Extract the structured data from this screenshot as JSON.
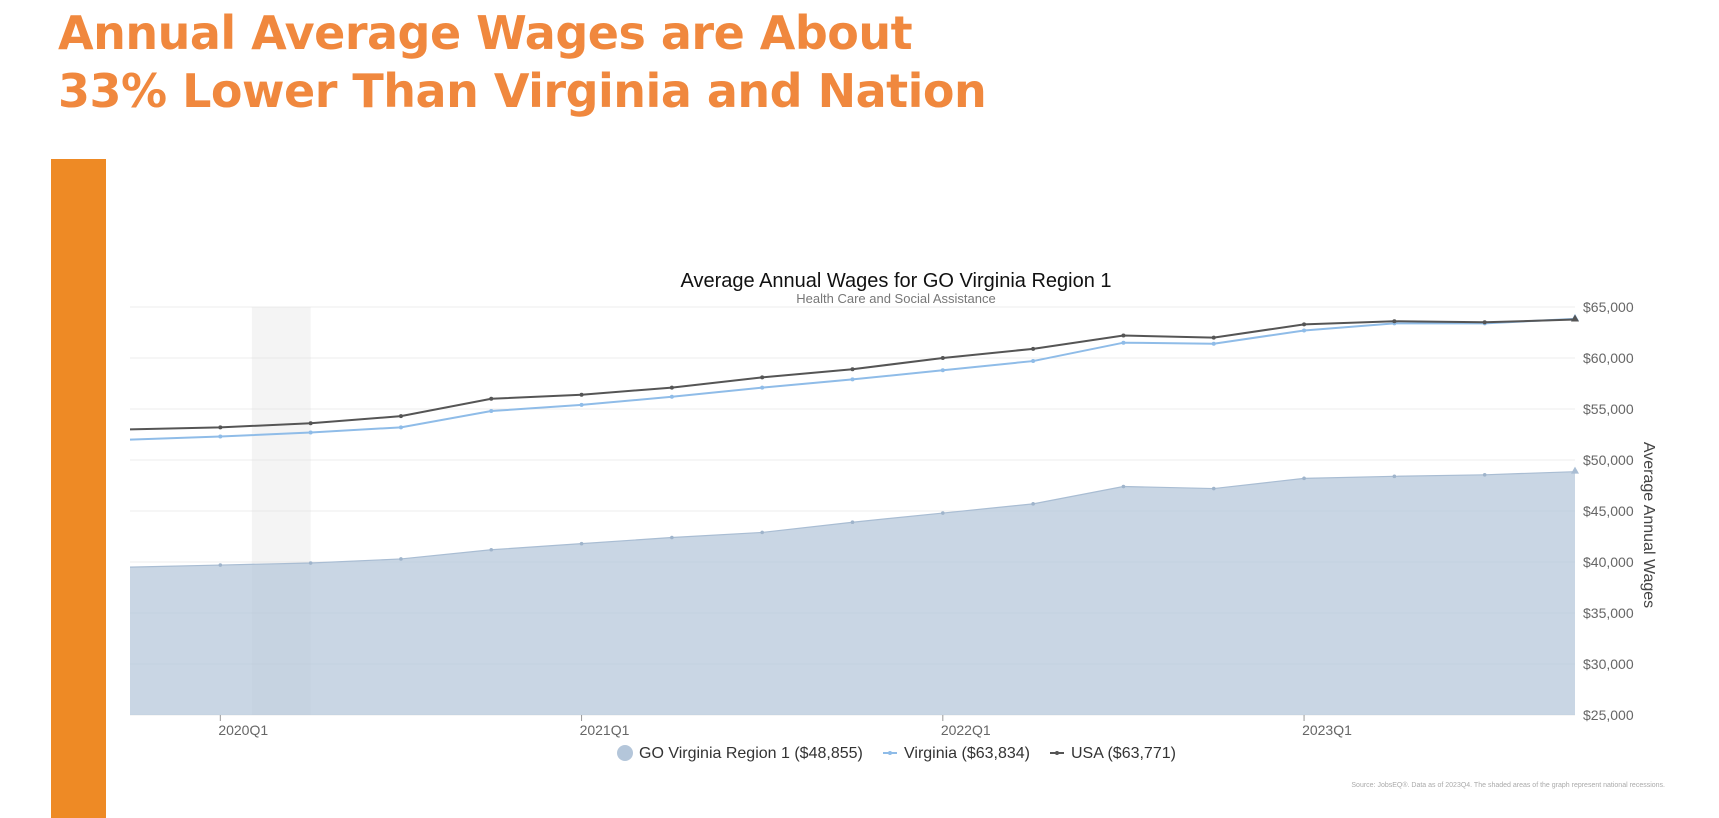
{
  "slide": {
    "headline_line1": "Annual Average Wages are About",
    "headline_line2": "33% Lower Than Virginia and Nation",
    "accent_color": "#ee8a25",
    "headline_color": "#f0883e"
  },
  "chart_data": {
    "type": "line",
    "title": "Average Annual Wages for GO Virginia Region 1",
    "subtitle": "Health Care and Social Assistance",
    "ylabel": "Average Annual Wages",
    "xlabel": "",
    "ylim": [
      25000,
      65000
    ],
    "yticks": [
      "$65,000",
      "$60,000",
      "$55,000",
      "$50,000",
      "$45,000",
      "$40,000",
      "$35,000",
      "$30,000",
      "$25,000"
    ],
    "ytick_values": [
      65000,
      60000,
      55000,
      50000,
      45000,
      40000,
      35000,
      30000,
      25000
    ],
    "xtick_labels": [
      "2020Q1",
      "2021Q1",
      "2022Q1",
      "2023Q1"
    ],
    "xtick_index": [
      1,
      5,
      9,
      13
    ],
    "x": [
      "2019Q4",
      "2020Q1",
      "2020Q2",
      "2020Q3",
      "2020Q4",
      "2021Q1",
      "2021Q2",
      "2021Q3",
      "2021Q4",
      "2022Q1",
      "2022Q2",
      "2022Q3",
      "2022Q4",
      "2023Q1",
      "2023Q2",
      "2023Q3",
      "2023Q4"
    ],
    "recession": {
      "start": "2020Q1",
      "end": "2020Q2"
    },
    "grid": true,
    "legend_position": "bottom",
    "series": [
      {
        "name": "GO Virginia Region 1 ($48,855)",
        "style": "area",
        "color": "#b4c6da",
        "values": [
          39500,
          39700,
          39900,
          40300,
          41200,
          41800,
          42400,
          42900,
          43900,
          44800,
          45700,
          47400,
          47200,
          48200,
          48400,
          48550,
          48855
        ]
      },
      {
        "name": "Virginia ($63,834)",
        "style": "line",
        "color": "#8fbce8",
        "values": [
          52000,
          52300,
          52700,
          53200,
          54800,
          55400,
          56200,
          57100,
          57900,
          58800,
          59700,
          61500,
          61400,
          62700,
          63400,
          63400,
          63834
        ]
      },
      {
        "name": "USA ($63,771)",
        "style": "line",
        "color": "#555555",
        "values": [
          53000,
          53200,
          53600,
          54300,
          56000,
          56400,
          57100,
          58100,
          58900,
          60000,
          60900,
          62200,
          62000,
          63300,
          63600,
          63500,
          63771
        ]
      }
    ],
    "source": "Source: JobsEQ®. Data as of 2023Q4. The shaded areas of the graph represent national recessions."
  }
}
